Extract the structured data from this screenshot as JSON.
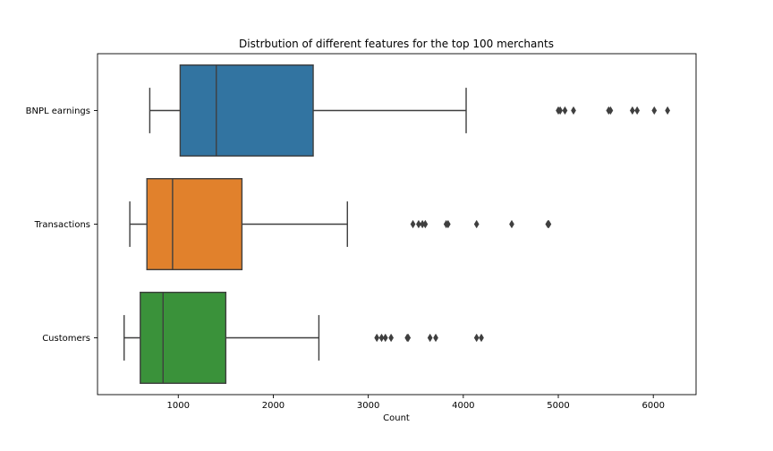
{
  "chart_data": {
    "type": "box",
    "orientation": "horizontal",
    "title": "Distrbution of different features for the top 100 merchants",
    "xlabel": "Count",
    "ylabel": "",
    "xlim": [
      150,
      6450
    ],
    "x_ticks": [
      1000,
      2000,
      3000,
      4000,
      5000,
      6000
    ],
    "grid": false,
    "categories": [
      "BNPL earnings",
      "Transactions",
      "Customers"
    ],
    "boxes": [
      {
        "category": "BNPL earnings",
        "color": "#3274a1",
        "whisker_low": 700,
        "q1": 1020,
        "median": 1400,
        "q3": 2420,
        "whisker_high": 4030,
        "outliers": [
          5000,
          5020,
          5070,
          5160,
          5530,
          5550,
          5780,
          5830,
          6010,
          6150
        ]
      },
      {
        "category": "Transactions",
        "color": "#e1812c",
        "whisker_low": 490,
        "q1": 670,
        "median": 940,
        "q3": 1670,
        "whisker_high": 2780,
        "outliers": [
          3470,
          3530,
          3570,
          3600,
          3820,
          3840,
          4140,
          4510,
          4890,
          4900
        ]
      },
      {
        "category": "Customers",
        "color": "#3a923a",
        "whisker_low": 430,
        "q1": 600,
        "median": 840,
        "q3": 1500,
        "whisker_high": 2480,
        "outliers": [
          3090,
          3140,
          3180,
          3240,
          3410,
          3420,
          3650,
          3710,
          4140,
          4190
        ]
      }
    ]
  }
}
